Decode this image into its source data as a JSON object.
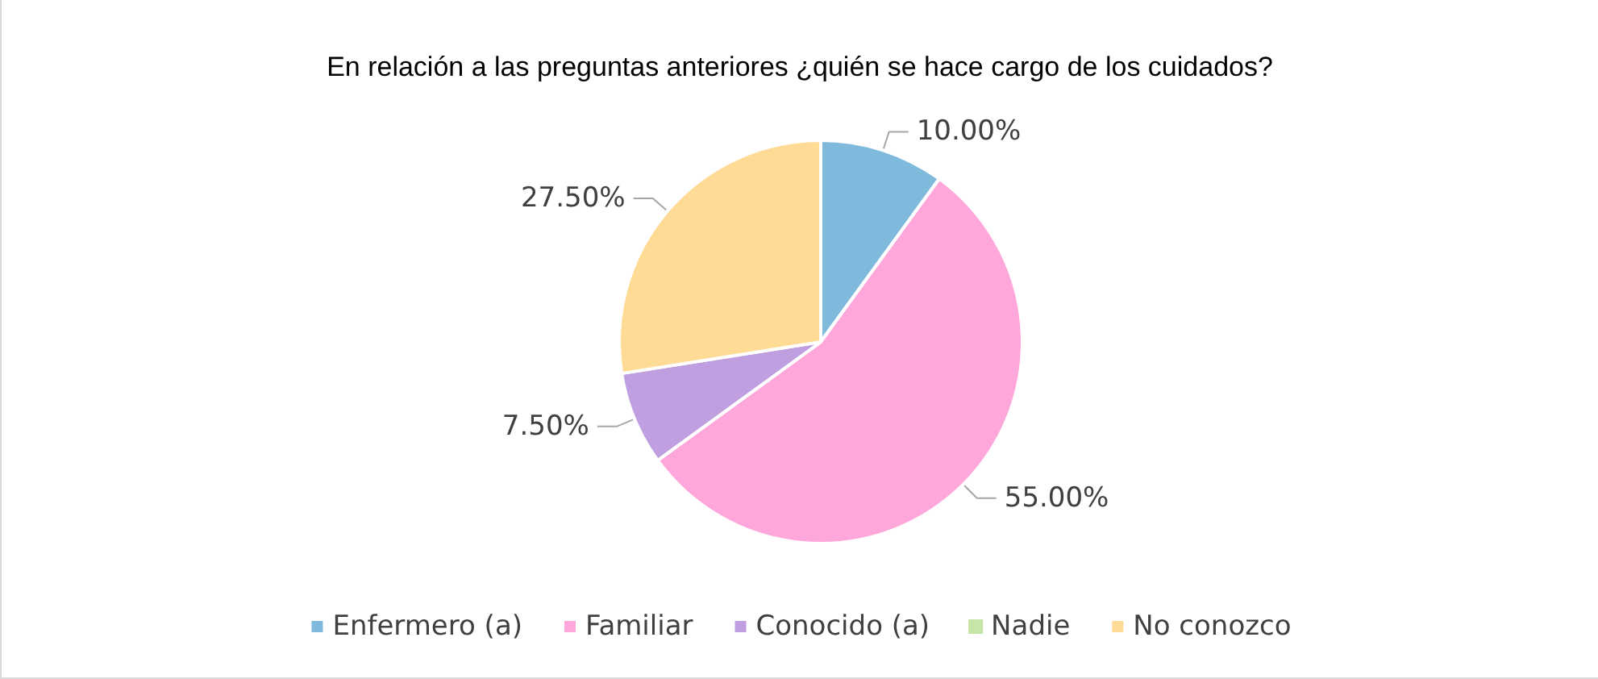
{
  "chart_data": {
    "type": "pie",
    "title": "En relación a las preguntas anteriores ¿quién se hace cargo de los cuidados?",
    "categories": [
      "Enfermero (a)",
      "Familiar",
      "Conocido (a)",
      "Nadie",
      "No conozco"
    ],
    "values": [
      10,
      55,
      7.5,
      0,
      27.5
    ],
    "colors": [
      "#7fb9dc",
      "#ffa7da",
      "#bf9fe0",
      "#c5e6a6",
      "#ffdb96"
    ],
    "value_labels": [
      "10.00%",
      "55.00%",
      "7.50%",
      null,
      "27.50%"
    ],
    "legend": "bottom"
  }
}
